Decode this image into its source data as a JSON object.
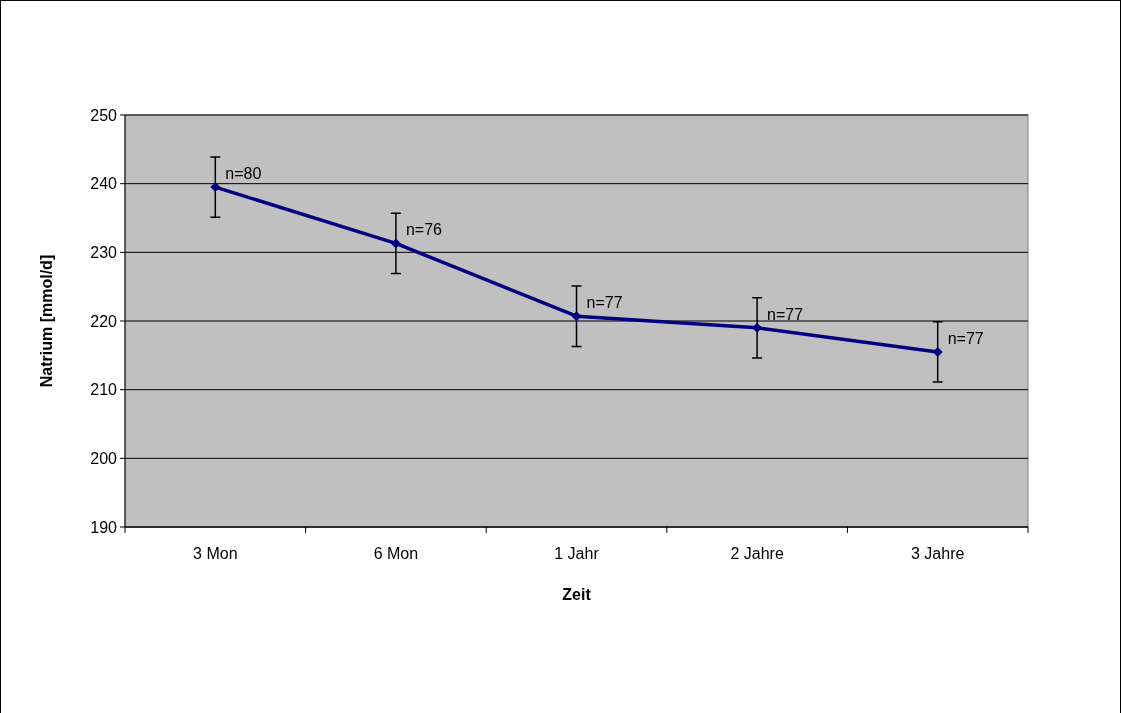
{
  "chart_data": {
    "type": "line",
    "xlabel": "Zeit",
    "ylabel": "Natrium [mmol/d]",
    "categories": [
      "3 Mon",
      "6 Mon",
      "1 Jahr",
      "2 Jahre",
      "3 Jahre"
    ],
    "series": [
      {
        "color": "#000080",
        "values": [
          239.5,
          231.3,
          220.7,
          219.0,
          215.5
        ],
        "errors": [
          4.4,
          4.4,
          4.4,
          4.4,
          4.4
        ]
      }
    ],
    "ylim": [
      190,
      250
    ],
    "yticks": [
      190,
      200,
      210,
      220,
      230,
      240,
      250
    ],
    "grid": "y",
    "marker": "diamond",
    "annotations": [
      {
        "text": "n=80",
        "x": "3 Mon",
        "y": 239.5
      },
      {
        "text": "n=76",
        "x": "6 Mon",
        "y": 231.3
      },
      {
        "text": "n=77",
        "x": "1 Jahr",
        "y": 220.7
      },
      {
        "text": "n=77",
        "x": "2 Jahre",
        "y": 219.0
      },
      {
        "text": "n=77",
        "x": "3 Jahre",
        "y": 215.5
      }
    ]
  }
}
